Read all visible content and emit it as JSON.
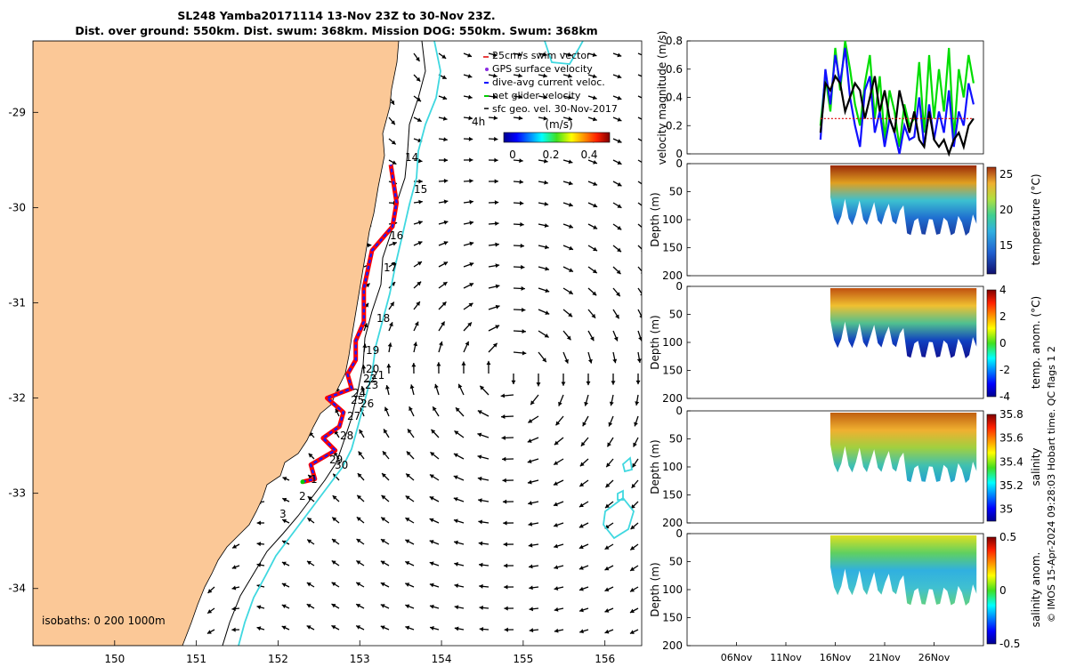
{
  "title": {
    "line1": "SL248 Yamba20171114 13-Nov 23Z to 30-Nov 23Z.",
    "line2": "Dist. over ground: 550km. Dist. swum: 368km. Mission DOG: 550km. Swum: 368km"
  },
  "legend": {
    "items": [
      {
        "label": "25cm/s swim vector",
        "color": "#e00000"
      },
      {
        "label": "GPS surface velocity",
        "color": "#8a2be2"
      },
      {
        "label": "dive-avg current veloc.",
        "color": "#0000ff"
      },
      {
        "label": "net glider velocity",
        "color": "#00cc00"
      },
      {
        "label": "sfc geo. vel. 30-Nov-2017",
        "color": "#000000"
      }
    ],
    "colorbar_title": "(m/s)",
    "colorbar_ticks": [
      "0",
      "0.2",
      "0.4"
    ],
    "scale_label": "4h"
  },
  "isobaths_label": "isobaths: 0   200  1000m",
  "credit": "© IMOS 15-Apr-2024 09:28:03 Hobart time. QC flags 1  2",
  "colors": {
    "land": "#fbc897",
    "isobath_1000": "#3fd8e0",
    "track": "#ff0000",
    "current": "#1010ff"
  },
  "chart_data": [
    {
      "type": "map",
      "title": "glider track map",
      "x_ticks": [
        "150",
        "151",
        "152",
        "153",
        "154",
        "155",
        "156"
      ],
      "y_ticks": [
        "-29",
        "-30",
        "-31",
        "-32",
        "-33",
        "-34"
      ],
      "xlim": [
        149.0,
        156.45
      ],
      "ylim": [
        -34.6,
        -28.25
      ],
      "track_labels": [
        "1",
        "2",
        "3",
        "14",
        "15",
        "16",
        "17",
        "18",
        "19",
        "20",
        "21",
        "22",
        "23",
        "24",
        "25",
        "26",
        "27",
        "28",
        "29",
        "30"
      ],
      "track": [
        {
          "lon": 152.3,
          "lat": -32.88
        },
        {
          "lon": 152.45,
          "lat": -32.85
        },
        {
          "lon": 152.4,
          "lat": -32.7
        },
        {
          "lon": 152.7,
          "lat": -32.55
        },
        {
          "lon": 152.55,
          "lat": -32.42
        },
        {
          "lon": 152.75,
          "lat": -32.3
        },
        {
          "lon": 152.8,
          "lat": -32.15
        },
        {
          "lon": 152.6,
          "lat": -32.0
        },
        {
          "lon": 152.9,
          "lat": -31.9
        },
        {
          "lon": 152.85,
          "lat": -31.75
        },
        {
          "lon": 152.95,
          "lat": -31.6
        },
        {
          "lon": 152.95,
          "lat": -31.4
        },
        {
          "lon": 153.05,
          "lat": -31.2
        },
        {
          "lon": 153.05,
          "lat": -30.85
        },
        {
          "lon": 153.1,
          "lat": -30.65
        },
        {
          "lon": 153.15,
          "lat": -30.45
        },
        {
          "lon": 153.4,
          "lat": -30.2
        },
        {
          "lon": 153.45,
          "lat": -29.95
        },
        {
          "lon": 153.38,
          "lat": -29.55
        }
      ]
    },
    {
      "type": "line",
      "title": "velocity magnitude",
      "ylabel": "velocity magnitude (m/s)",
      "ylim": [
        0,
        0.8
      ],
      "y_ticks": [
        "0",
        "0.2",
        "0.4",
        "0.6",
        "0.8"
      ],
      "x": [
        14.5,
        15,
        15.5,
        16,
        16.5,
        17,
        17.5,
        18,
        18.5,
        19,
        19.5,
        20,
        20.5,
        21,
        21.5,
        22,
        22.5,
        23,
        23.5,
        24,
        24.5,
        25,
        25.5,
        26,
        26.5,
        27,
        27.5,
        28,
        28.5,
        29,
        29.5,
        30
      ],
      "series": [
        {
          "name": "net glider velocity",
          "color": "#00dd00",
          "values": [
            0.2,
            0.55,
            0.3,
            0.75,
            0.45,
            0.8,
            0.6,
            0.35,
            0.2,
            0.5,
            0.7,
            0.25,
            0.55,
            0.1,
            0.45,
            0.3,
            0.05,
            0.35,
            0.2,
            0.25,
            0.65,
            0.15,
            0.7,
            0.25,
            0.6,
            0.3,
            0.75,
            0.1,
            0.6,
            0.4,
            0.7,
            0.5
          ]
        },
        {
          "name": "dive-avg current veloc.",
          "color": "#1010ff",
          "values": [
            0.1,
            0.6,
            0.35,
            0.7,
            0.5,
            0.75,
            0.4,
            0.2,
            0.05,
            0.45,
            0.55,
            0.15,
            0.3,
            0.05,
            0.25,
            0.15,
            0.0,
            0.2,
            0.1,
            0.12,
            0.4,
            0.05,
            0.35,
            0.1,
            0.3,
            0.15,
            0.45,
            0.05,
            0.3,
            0.2,
            0.5,
            0.35
          ]
        },
        {
          "name": "sfc geo. vel.",
          "color": "#000000",
          "values": [
            0.15,
            0.5,
            0.45,
            0.55,
            0.5,
            0.3,
            0.4,
            0.5,
            0.45,
            0.25,
            0.4,
            0.55,
            0.3,
            0.45,
            0.25,
            0.15,
            0.45,
            0.3,
            0.15,
            0.3,
            0.1,
            0.05,
            0.3,
            0.1,
            0.05,
            0.1,
            0.0,
            0.1,
            0.15,
            0.05,
            0.2,
            0.25
          ]
        },
        {
          "name": "25cm/s swim vector",
          "color": "#e00000",
          "values": [
            0.25,
            0.25,
            0.25,
            0.25,
            0.25,
            0.25,
            0.25,
            0.25,
            0.25,
            0.25,
            0.25,
            0.25,
            0.25,
            0.25,
            0.25,
            0.25,
            0.25,
            0.25,
            0.25,
            0.25,
            0.25,
            0.25,
            0.25,
            0.25,
            0.25,
            0.25,
            0.25,
            0.25,
            0.25,
            0.25,
            0.25,
            0.25
          ]
        }
      ]
    },
    {
      "type": "heatmap",
      "title": "temperature",
      "cblabel": "temperature (°C)",
      "ylabel": "Depth (m)",
      "y_ticks": [
        "0",
        "50",
        "100",
        "150",
        "200"
      ],
      "cb_ticks": [
        "15",
        "20",
        "25"
      ],
      "clim": [
        11,
        26
      ]
    },
    {
      "type": "heatmap",
      "title": "temperature anomaly",
      "cblabel": "temp. anom. (°C)",
      "ylabel": "Depth (m)",
      "y_ticks": [
        "0",
        "50",
        "100",
        "150",
        "200"
      ],
      "cb_ticks": [
        "-4",
        "-2",
        "0",
        "2",
        "4"
      ],
      "clim": [
        -4,
        4
      ]
    },
    {
      "type": "heatmap",
      "title": "salinity",
      "cblabel": "salinity",
      "ylabel": "Depth (m)",
      "y_ticks": [
        "0",
        "50",
        "100",
        "150",
        "200"
      ],
      "cb_ticks": [
        "35",
        "35.2",
        "35.4",
        "35.6",
        "35.8"
      ],
      "clim": [
        34.9,
        35.8
      ]
    },
    {
      "type": "heatmap",
      "title": "salinity anomaly",
      "cblabel": "salinity anom.",
      "ylabel": "Depth (m)",
      "y_ticks": [
        "0",
        "50",
        "100",
        "150",
        "200"
      ],
      "cb_ticks": [
        "-0.5",
        "0",
        "0.5"
      ],
      "clim": [
        -0.5,
        0.5
      ],
      "x_ticks": [
        "06Nov",
        "11Nov",
        "16Nov",
        "21Nov",
        "26Nov"
      ]
    }
  ]
}
